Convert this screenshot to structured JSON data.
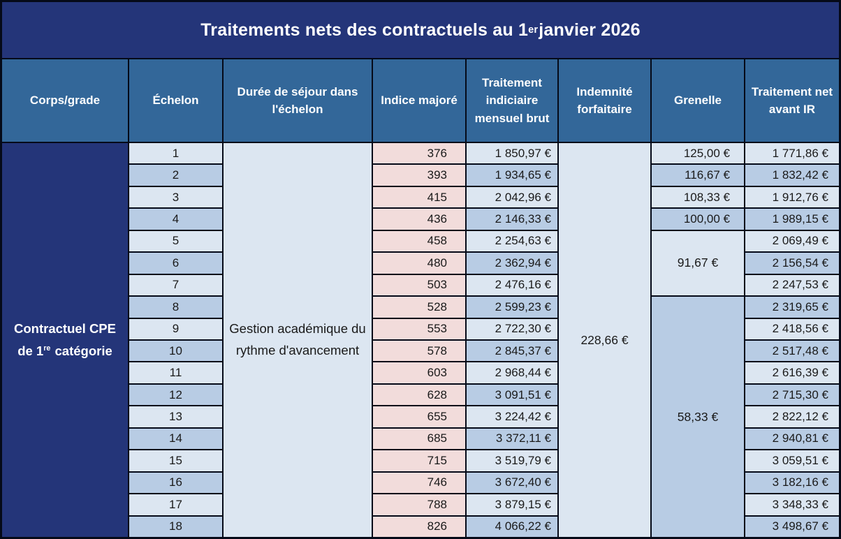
{
  "title": {
    "before": "Traitements nets des contractuels au 1",
    "sup": "er",
    "after": " janvier 2026"
  },
  "columns": [
    "Corps/grade",
    "Échelon",
    "Durée de séjour dans l'échelon",
    "Indice majoré",
    "Traitement indiciaire mensuel brut",
    "Indemnité forfaitaire",
    "Grenelle",
    "Traitement net avant IR"
  ],
  "corps": {
    "line1": "Contractuel CPE",
    "line2_before": "de 1",
    "line2_sup": "re",
    "line2_after": " catégorie"
  },
  "duree_value": "Gestion académique du rythme d'avancement",
  "indemnite_value": "228,66 €",
  "grenelle": {
    "single_cells": [
      "125,00 €",
      "116,67 €",
      "108,33 €",
      "100,00 €"
    ],
    "merged_5_7": "91,67 €",
    "merged_8_18": "58,33 €"
  },
  "rows": [
    {
      "echelon": "1",
      "indice": "376",
      "brut": "1 850,97 €",
      "net": "1 771,86 €"
    },
    {
      "echelon": "2",
      "indice": "393",
      "brut": "1 934,65 €",
      "net": "1 832,42 €"
    },
    {
      "echelon": "3",
      "indice": "415",
      "brut": "2 042,96 €",
      "net": "1 912,76 €"
    },
    {
      "echelon": "4",
      "indice": "436",
      "brut": "2 146,33 €",
      "net": "1 989,15 €"
    },
    {
      "echelon": "5",
      "indice": "458",
      "brut": "2 254,63 €",
      "net": "2 069,49 €"
    },
    {
      "echelon": "6",
      "indice": "480",
      "brut": "2 362,94 €",
      "net": "2 156,54 €"
    },
    {
      "echelon": "7",
      "indice": "503",
      "brut": "2 476,16 €",
      "net": "2 247,53 €"
    },
    {
      "echelon": "8",
      "indice": "528",
      "brut": "2 599,23 €",
      "net": "2 319,65 €"
    },
    {
      "echelon": "9",
      "indice": "553",
      "brut": "2 722,30 €",
      "net": "2 418,56 €"
    },
    {
      "echelon": "10",
      "indice": "578",
      "brut": "2 845,37 €",
      "net": "2 517,48 €"
    },
    {
      "echelon": "11",
      "indice": "603",
      "brut": "2 968,44 €",
      "net": "2 616,39 €"
    },
    {
      "echelon": "12",
      "indice": "628",
      "brut": "3 091,51 €",
      "net": "2 715,30 €"
    },
    {
      "echelon": "13",
      "indice": "655",
      "brut": "3 224,42 €",
      "net": "2 822,12 €"
    },
    {
      "echelon": "14",
      "indice": "685",
      "brut": "3 372,11 €",
      "net": "2 940,81 €"
    },
    {
      "echelon": "15",
      "indice": "715",
      "brut": "3 519,79 €",
      "net": "3 059,51 €"
    },
    {
      "echelon": "16",
      "indice": "746",
      "brut": "3 672,40 €",
      "net": "3 182,16 €"
    },
    {
      "echelon": "17",
      "indice": "788",
      "brut": "3 879,15 €",
      "net": "3 348,33 €"
    },
    {
      "echelon": "18",
      "indice": "826",
      "brut": "4 066,22 €",
      "net": "3 498,67 €"
    }
  ],
  "colors": {
    "title_navy": "#243579",
    "header_blue": "#336799",
    "row_light": "#DCE6F1",
    "row_dark": "#B8CCE4",
    "indice_pink": "#F2DCDB",
    "grid_line": "#050a18",
    "text_dark": "#1a1a1a",
    "text_white": "#ffffff"
  },
  "chart_data": {
    "type": "table",
    "title": "Traitements nets des contractuels au 1er janvier 2026",
    "columns": [
      "Échelon",
      "Indice majoré",
      "Traitement indiciaire mensuel brut",
      "Indemnité forfaitaire",
      "Grenelle",
      "Traitement net avant IR"
    ],
    "echelons": [
      1,
      2,
      3,
      4,
      5,
      6,
      7,
      8,
      9,
      10,
      11,
      12,
      13,
      14,
      15,
      16,
      17,
      18
    ],
    "indice_majore": [
      376,
      393,
      415,
      436,
      458,
      480,
      503,
      528,
      553,
      578,
      603,
      628,
      655,
      685,
      715,
      746,
      788,
      826
    ],
    "traitement_brut_eur": [
      1850.97,
      1934.65,
      2042.96,
      2146.33,
      2254.63,
      2362.94,
      2476.16,
      2599.23,
      2722.3,
      2845.37,
      2968.44,
      3091.51,
      3224.42,
      3372.11,
      3519.79,
      3672.4,
      3879.15,
      4066.22
    ],
    "indemnite_forfaitaire_eur": 228.66,
    "grenelle_eur": [
      125.0,
      116.67,
      108.33,
      100.0,
      91.67,
      91.67,
      91.67,
      58.33,
      58.33,
      58.33,
      58.33,
      58.33,
      58.33,
      58.33,
      58.33,
      58.33,
      58.33,
      58.33
    ],
    "traitement_net_avant_ir_eur": [
      1771.86,
      1832.42,
      1912.76,
      1989.15,
      2069.49,
      2156.54,
      2247.53,
      2319.65,
      2418.56,
      2517.48,
      2616.39,
      2715.3,
      2822.12,
      2940.81,
      3059.51,
      3182.16,
      3348.33,
      3498.67
    ]
  }
}
